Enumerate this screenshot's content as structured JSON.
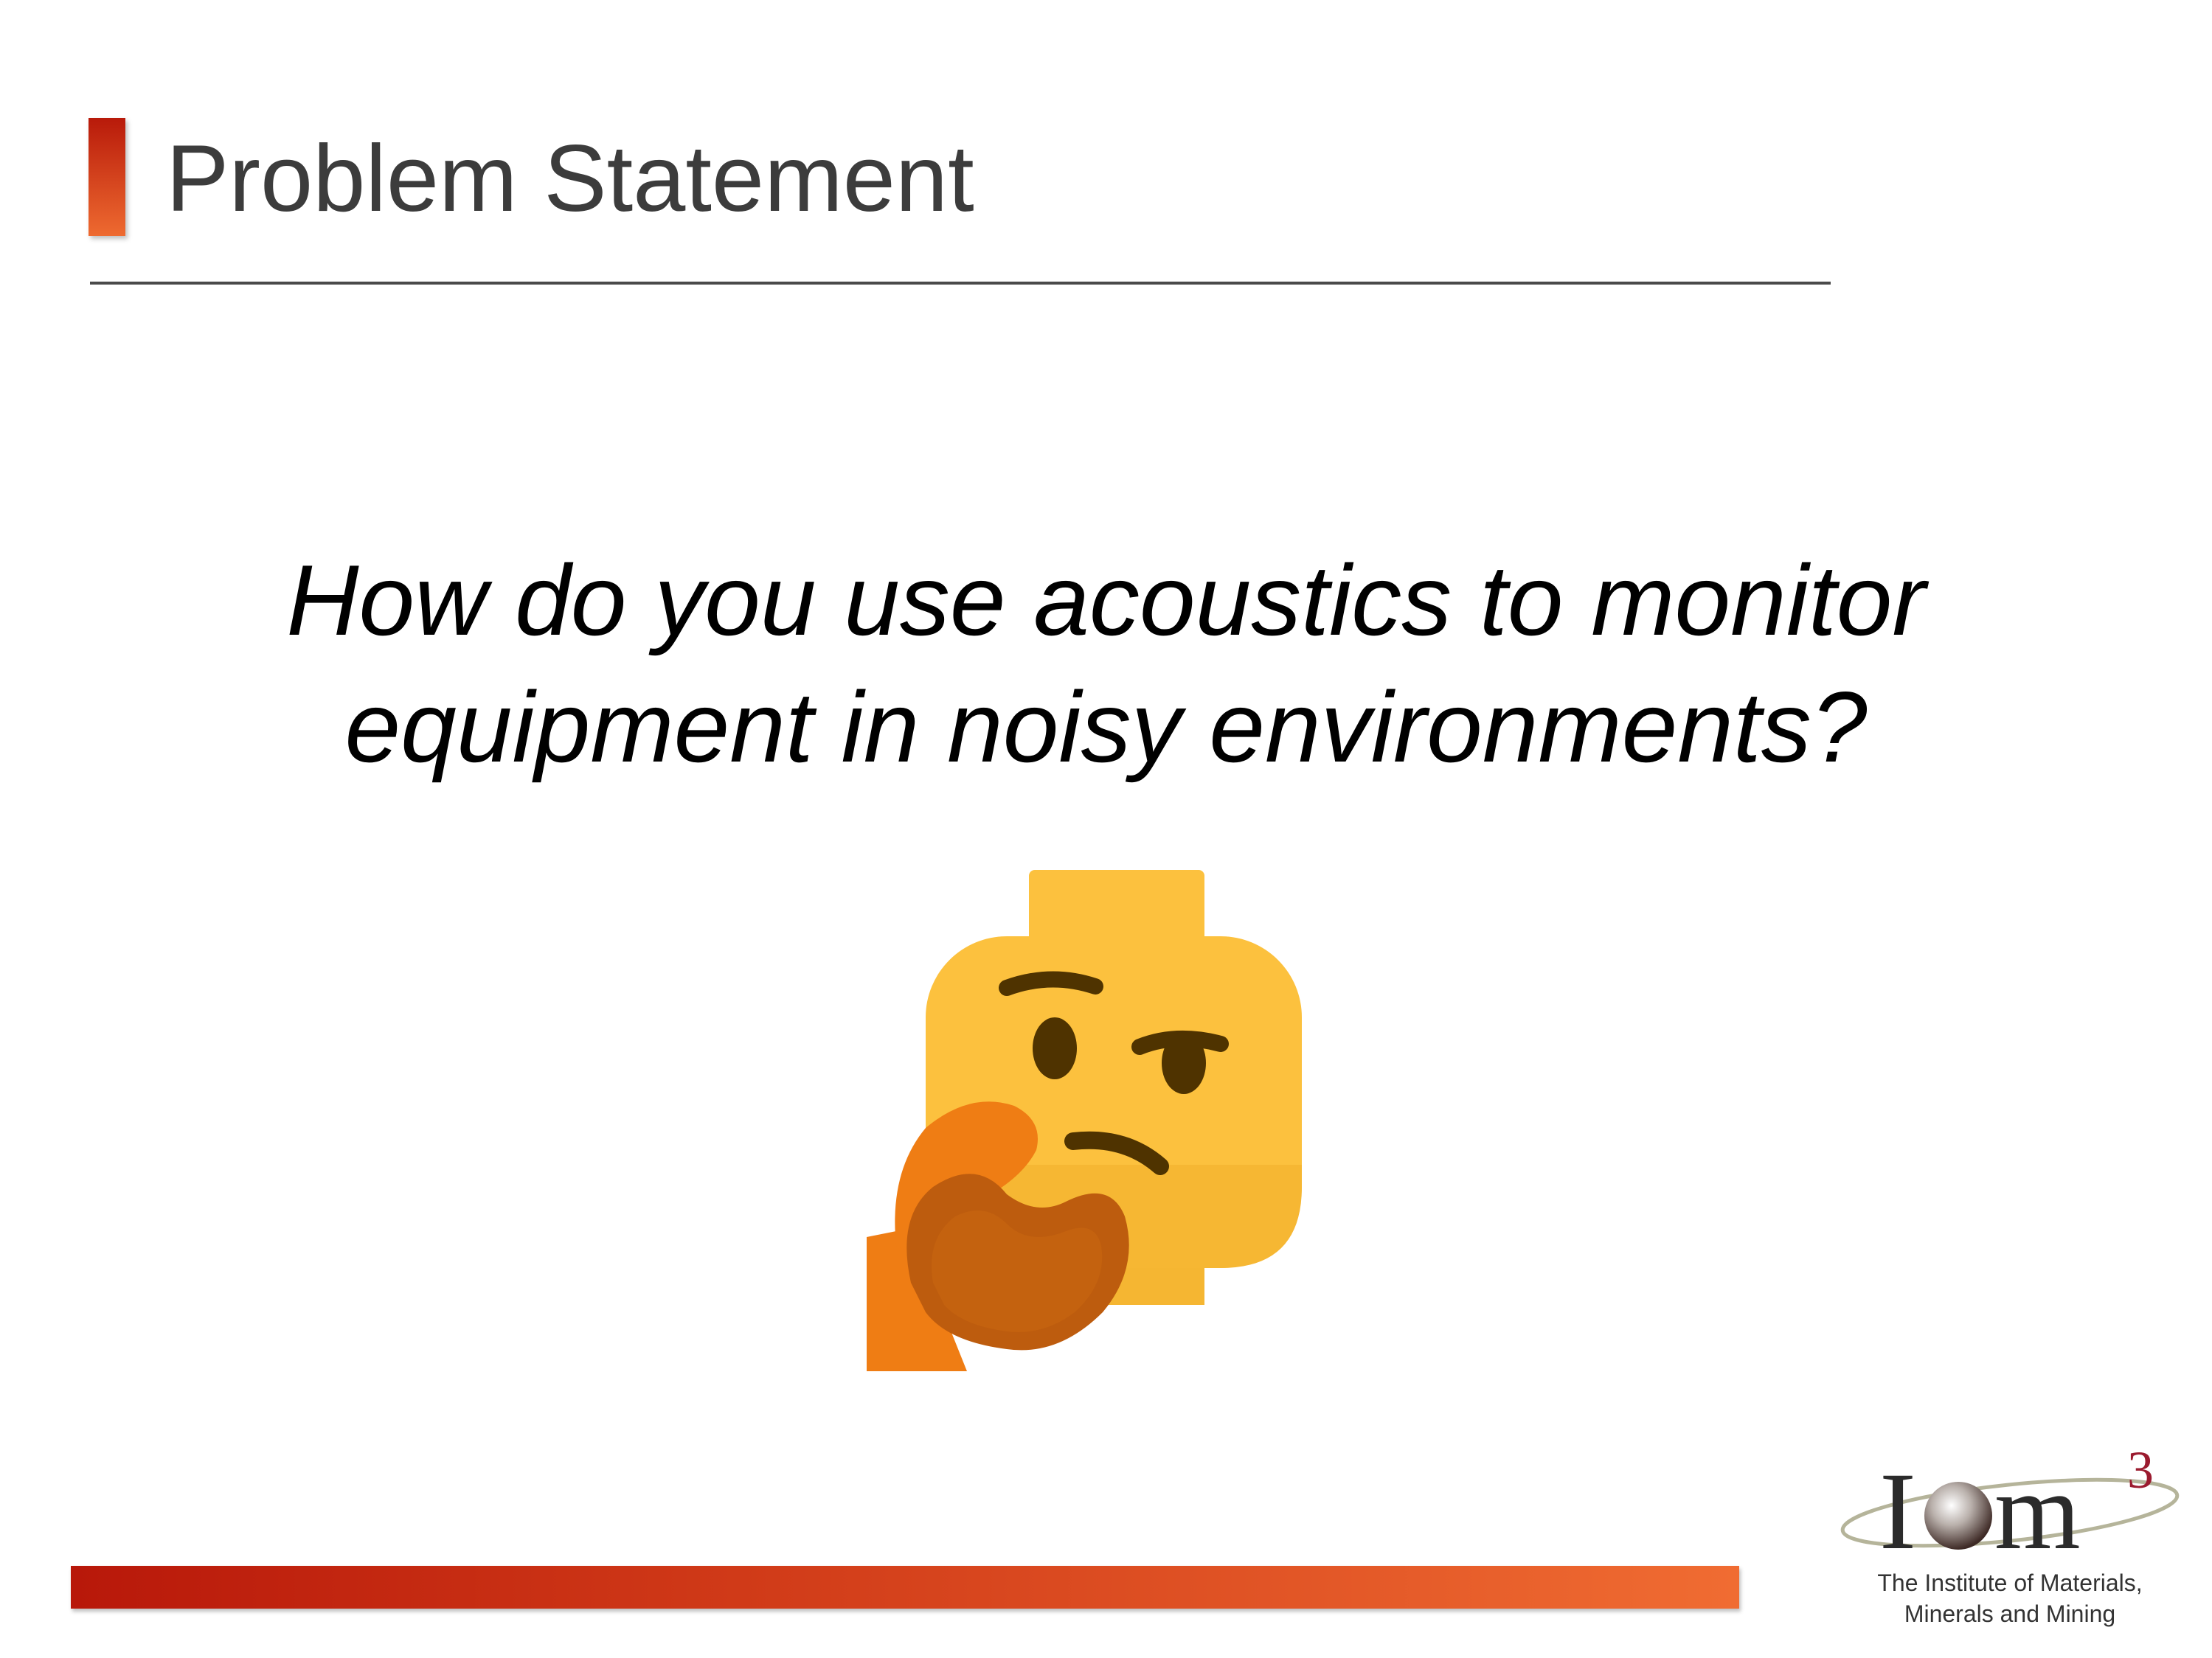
{
  "slide": {
    "title": "Problem Statement",
    "question_lines": [
      "How do you use acoustics to monitor",
      "equipment in noisy environments?"
    ],
    "emoji": "thinking-face-icon"
  },
  "logo": {
    "mark_letters": "IOm",
    "mark_superscript": "3",
    "caption_lines": [
      "The Institute of Materials,",
      "Minerals and Mining"
    ]
  },
  "colors": {
    "accent_dark": "#b81a0a",
    "accent_light": "#ee6a30",
    "title_text": "#3c3c3c",
    "emoji_yellow": "#fcc13e",
    "emoji_hand": "#ef7d14",
    "logo_red": "#9b1b2f"
  }
}
